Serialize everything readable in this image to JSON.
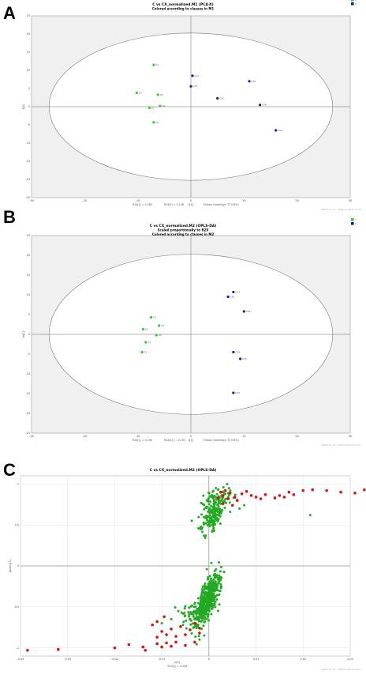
{
  "chart_data": [
    {
      "panel_label": "A",
      "type": "scatter",
      "title": "C vs CX_normalized.M1 (PCA-X)",
      "subtitle": "Colored according to classes in M1",
      "xlabel": "t[1]",
      "ylabel": "t[2]",
      "xlim": [
        -30,
        30
      ],
      "ylim": [
        -25,
        25
      ],
      "xticks": [
        "-30",
        "-20",
        "-10",
        "0",
        "10",
        "20",
        "30"
      ],
      "yticks": [
        "25",
        "20",
        "15",
        "10",
        "5",
        "0",
        "-5",
        "-10",
        "-15",
        "-20",
        "-25"
      ],
      "footer": [
        "R2X[1] = 0.365",
        "R2X[2] = 0.148",
        "Ellipse: Hotelling's T2 (95%)"
      ],
      "watermark": "SIMCA-P+ 12 - 2020-11-09 10:45:46",
      "legend": [
        {
          "label": "1",
          "color": "#33cc33"
        },
        {
          "label": "2",
          "color": "#1a1aa6"
        }
      ],
      "legend_position": "top-right",
      "grid": false,
      "series": [
        {
          "name": "1",
          "color": "#33cc33",
          "points": [
            {
              "x": -7.0,
              "y": 11.5,
              "label": "C3"
            },
            {
              "x": -10.2,
              "y": 3.8,
              "label": "C5"
            },
            {
              "x": -6.2,
              "y": 3.3,
              "label": "C4"
            },
            {
              "x": -5.8,
              "y": 0.2,
              "label": "C6"
            },
            {
              "x": -7.8,
              "y": -0.3,
              "label": "C1"
            },
            {
              "x": -7.0,
              "y": -4.3,
              "label": "C2"
            }
          ]
        },
        {
          "name": "2",
          "color": "#1a1aa6",
          "points": [
            {
              "x": 0.3,
              "y": 8.5,
              "label": "CX1"
            },
            {
              "x": 0.0,
              "y": 5.6,
              "label": "CX3"
            },
            {
              "x": 11.0,
              "y": 7.0,
              "label": "CX4"
            },
            {
              "x": 5.0,
              "y": 2.3,
              "label": "CX5"
            },
            {
              "x": 13.0,
              "y": 0.5,
              "label": "CX6"
            },
            {
              "x": 16.0,
              "y": -6.5,
              "label": "CX2"
            }
          ]
        }
      ]
    },
    {
      "panel_label": "B",
      "type": "scatter",
      "title": "C vs CX_normalized.M2 (OPLS-DA)",
      "subtitle": "Scaled proportionally to R2X",
      "subtitle2": "Colored according to classes in M2",
      "xlabel": "t[1]",
      "ylabel": "to[1]",
      "xlim": [
        -30,
        30
      ],
      "ylim": [
        -25,
        25
      ],
      "xticks": [
        "-30",
        "-20",
        "-10",
        "0",
        "10",
        "20",
        "30"
      ],
      "yticks": [
        "25",
        "20",
        "15",
        "10",
        "5",
        "0",
        "-5",
        "-10",
        "-15",
        "-20",
        "-25"
      ],
      "footer": [
        "R2X[1] = 0.298",
        "R2X0[1] = 0.193",
        "Ellipse: Hotelling's T2 (95%)"
      ],
      "watermark": "SIMCA-P+ 12 - 2020-11-09 10:47:41",
      "legend": [
        {
          "label": "1",
          "color": "#33cc33"
        },
        {
          "label": "2",
          "color": "#1a1aa6"
        }
      ],
      "legend_position": "top-right",
      "grid": false,
      "series": [
        {
          "name": "1",
          "color": "#33cc33",
          "points": [
            {
              "x": -7.5,
              "y": 4.3,
              "label": "C3"
            },
            {
              "x": -6.0,
              "y": 2.2,
              "label": "C4"
            },
            {
              "x": -9.0,
              "y": 1.3,
              "label": "C5"
            },
            {
              "x": -6.5,
              "y": -0.2,
              "label": "C6"
            },
            {
              "x": -8.5,
              "y": -2.0,
              "label": "C1"
            },
            {
              "x": -9.2,
              "y": -4.5,
              "label": "C2"
            }
          ]
        },
        {
          "name": "2",
          "color": "#1a1aa6",
          "points": [
            {
              "x": 8.0,
              "y": 10.7,
              "label": "CX1"
            },
            {
              "x": 7.0,
              "y": 9.5,
              "label": "CX3"
            },
            {
              "x": 10.0,
              "y": 5.8,
              "label": "CX6"
            },
            {
              "x": 8.0,
              "y": -4.5,
              "label": "CX4"
            },
            {
              "x": 9.3,
              "y": -6.2,
              "label": "CX5"
            },
            {
              "x": 8.0,
              "y": -14.8,
              "label": "CX2"
            }
          ]
        }
      ]
    },
    {
      "panel_label": "C",
      "type": "scatter",
      "title": "C vs CX_normalized.M2 (OPLS-DA)",
      "xlabel": "p[1]",
      "ylabel": "p(corr)[1]",
      "xlim": [
        -0.04,
        0.03
      ],
      "ylim": [
        -1.1,
        1.1
      ],
      "xticks": [
        "-0.04",
        "-0.03",
        "-0.02",
        "-0.01",
        "0",
        "0.01",
        "0.02",
        "0.03"
      ],
      "yticks": [
        "1",
        "0.5",
        "0",
        "-0.5",
        "-1"
      ],
      "footer": [
        "R2X[1] = 0.298"
      ],
      "watermark": "SIMCA-P+ 12 - 2020-11-09 10:50:01",
      "grid": true,
      "series": [
        {
          "color": "#22aa22",
          "cluster_groups": [
            {
              "cx": -0.0003,
              "cy": -0.4,
              "sx": 0.0009,
              "sy": 0.16,
              "n": 500
            },
            {
              "cx": 0.0008,
              "cy": 0.62,
              "sx": 0.001,
              "sy": 0.12,
              "n": 170
            },
            {
              "cx": 0.0022,
              "cy": 0.84,
              "sx": 0.0018,
              "sy": 0.05,
              "n": 60
            },
            {
              "cx": -0.0035,
              "cy": -0.6,
              "sx": 0.0022,
              "sy": 0.08,
              "n": 45
            }
          ],
          "extra_points": [
            [
              0.0215,
              0.62
            ],
            [
              0.0065,
              0.7
            ],
            [
              0.0075,
              0.74
            ],
            [
              0.0045,
              0.66
            ],
            [
              0.002,
              0.93
            ],
            [
              -0.0055,
              -0.72
            ],
            [
              -0.008,
              -0.65
            ],
            [
              -0.01,
              -0.7
            ],
            [
              -0.0065,
              -0.55
            ],
            [
              0.003,
              0.78
            ],
            [
              0.0015,
              0.95
            ],
            [
              -0.001,
              -0.85
            ],
            [
              -0.002,
              -0.9
            ]
          ]
        },
        {
          "color": "#dd1111",
          "points": [
            [
              -0.0385,
              -1.03
            ],
            [
              -0.032,
              -1.02
            ],
            [
              -0.02,
              -1.0
            ],
            [
              -0.017,
              -0.96
            ],
            [
              -0.014,
              -0.99
            ],
            [
              -0.0135,
              -1.03
            ],
            [
              -0.011,
              -0.95
            ],
            [
              -0.01,
              -0.99
            ],
            [
              -0.009,
              -0.94
            ],
            [
              -0.008,
              -0.98
            ],
            [
              -0.007,
              -0.93
            ],
            [
              -0.005,
              -0.97
            ],
            [
              -0.003,
              -0.93
            ],
            [
              -0.011,
              -0.87
            ],
            [
              -0.009,
              -0.84
            ],
            [
              -0.007,
              -0.86
            ],
            [
              -0.005,
              -0.84
            ],
            [
              -0.01,
              -0.8
            ],
            [
              -0.008,
              -0.77
            ],
            [
              -0.006,
              -0.74
            ],
            [
              -0.004,
              -0.78
            ],
            [
              -0.002,
              -0.82
            ],
            [
              -0.011,
              -0.68
            ],
            [
              -0.0095,
              -0.62
            ],
            [
              -0.012,
              -0.72
            ],
            [
              -0.003,
              -0.7
            ],
            [
              -0.002,
              -0.76
            ],
            [
              0.002,
              0.83
            ],
            [
              0.003,
              0.86
            ],
            [
              0.004,
              0.82
            ],
            [
              0.0045,
              0.89
            ],
            [
              0.0055,
              0.84
            ],
            [
              0.006,
              0.8
            ],
            [
              0.007,
              0.88
            ],
            [
              0.008,
              0.91
            ],
            [
              0.009,
              0.86
            ],
            [
              0.01,
              0.84
            ],
            [
              0.011,
              0.82
            ],
            [
              0.012,
              0.87
            ],
            [
              0.014,
              0.83
            ],
            [
              0.015,
              0.86
            ],
            [
              0.016,
              0.84
            ],
            [
              0.017,
              0.9
            ],
            [
              0.018,
              0.87
            ],
            [
              0.02,
              0.92
            ],
            [
              0.022,
              0.93
            ],
            [
              0.025,
              0.92
            ],
            [
              0.028,
              0.9
            ],
            [
              0.031,
              0.89
            ],
            [
              0.033,
              0.93
            ],
            [
              0.003,
              0.76
            ],
            [
              0.005,
              0.74
            ],
            [
              0.0025,
              0.9
            ],
            [
              0.0035,
              0.92
            ]
          ]
        }
      ]
    }
  ]
}
